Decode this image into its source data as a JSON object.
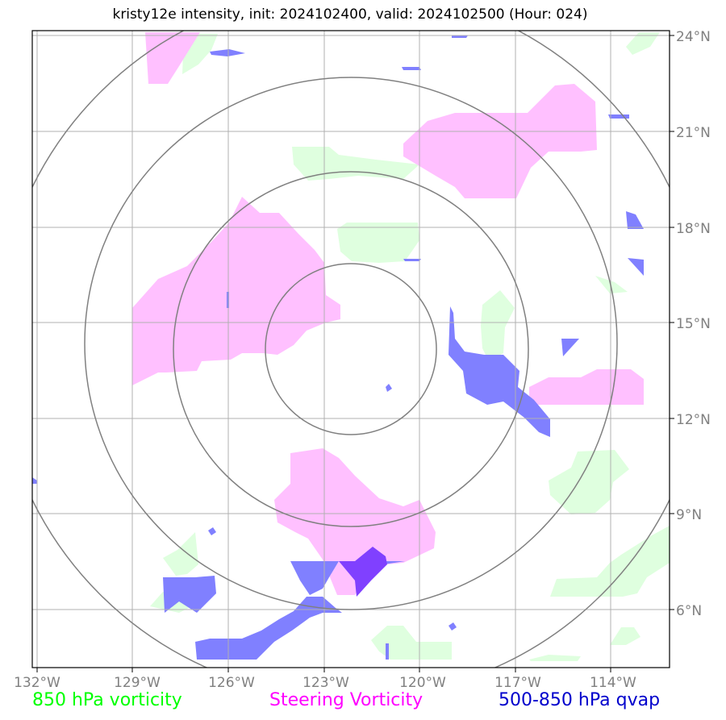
{
  "title": "kristy12e intensity, init: 2024102400, valid: 2024102500 (Hour: 024)",
  "lon_ticks": [
    "132°W",
    "129°W",
    "126°W",
    "123°W",
    "120°W",
    "117°W",
    "114°W"
  ],
  "lat_ticks": [
    "24°N",
    "21°N",
    "18°N",
    "15°N",
    "12°N",
    "9°N",
    "6°N"
  ],
  "legend": [
    {
      "label": "850 hPa vorticity",
      "color": "#00ff00"
    },
    {
      "label": "Steering Vorticity",
      "color": "#ff00ff"
    },
    {
      "label": "500-850 hPa qvap",
      "color": "#0000cc"
    }
  ],
  "colors": {
    "green_fill": "#dfffdf",
    "pink_fill": "#ffc0ff",
    "blue_fill": "#8080ff",
    "purple_fill": "#8040ff",
    "grid": "#b0b0b0",
    "rings": "#808080"
  }
}
